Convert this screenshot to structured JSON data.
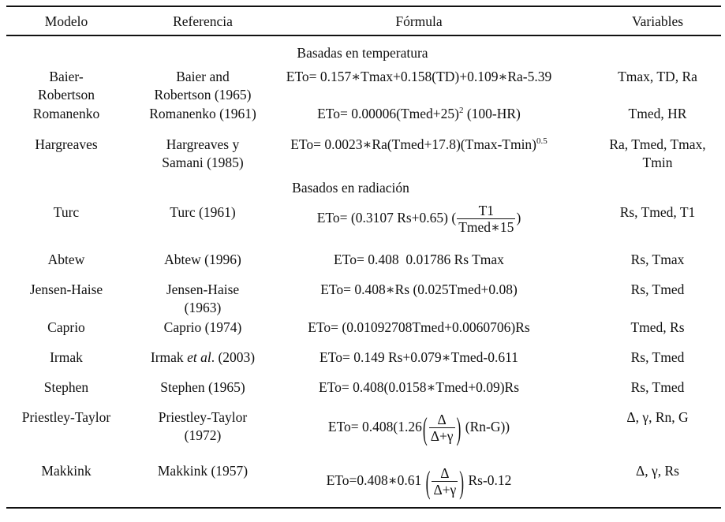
{
  "headers": {
    "modelo": "Modelo",
    "referencia": "Referencia",
    "formula": "Fórmula",
    "variables": "Variables"
  },
  "sections": {
    "temperatura": "Basadas en temperatura",
    "radiacion": "Basados en radiación"
  },
  "rows": [
    {
      "modelo_1": "Baier-",
      "modelo_2": "Robertson",
      "ref_1": "Baier and",
      "ref_2": "Robertson (1965)",
      "formula": "ETo= 0.157∗Tmax+0.158(TD)+0.109∗Ra-5.39",
      "variables": "Tmax, TD, Ra"
    },
    {
      "modelo_1": "Romanenko",
      "ref_1": "Romanenko (1961)",
      "formula_pre": "ETo= 0.00006(Tmed+25)",
      "formula_sup": "2",
      "formula_post": " (100-HR)",
      "variables": "Tmed, HR"
    },
    {
      "modelo_1": "Hargreaves",
      "ref_1": "Hargreaves y",
      "ref_2": "Samani (1985)",
      "formula_pre": "ETo= 0.0023∗Ra(Tmed+17.8)(Tmax-Tmin)",
      "formula_sup": "0.5",
      "variables_1": "Ra, Tmed, Tmax,",
      "variables_2": "Tmin"
    },
    {
      "modelo_1": "Turc",
      "ref_1": "Turc (1961)",
      "formula_pre": "ETo= (0.3107 Rs+0.65) (",
      "formula_num": "T1",
      "formula_den": "Tmed∗15",
      "formula_post": ")",
      "variables": "Rs, Tmed, T1"
    },
    {
      "modelo_1": "Abtew",
      "ref_1": "Abtew (1996)",
      "formula": "ETo= 0.408  0.01786 Rs Tmax",
      "variables": "Rs, Tmax"
    },
    {
      "modelo_1": "Jensen-Haise",
      "ref_1": "Jensen-Haise",
      "ref_2": "(1963)",
      "formula": "ETo= 0.408∗Rs (0.025Tmed+0.08)",
      "variables": "Rs, Tmed"
    },
    {
      "modelo_1": "Caprio",
      "ref_1": "Caprio (1974)",
      "formula": "ETo= (0.01092708Tmed+0.0060706)Rs",
      "variables": "Tmed, Rs"
    },
    {
      "modelo_1": "Irmak",
      "ref_pre": "Irmak ",
      "ref_em": "et al",
      "ref_post": ". (2003)",
      "formula": "ETo= 0.149 Rs+0.079∗Tmed-0.611",
      "variables": "Rs, Tmed"
    },
    {
      "modelo_1": "Stephen",
      "ref_1": "Stephen (1965)",
      "formula": "ETo= 0.408(0.0158∗Tmed+0.09)Rs",
      "variables": "Rs, Tmed"
    },
    {
      "modelo_1": "Priestley-Taylor",
      "ref_1": "Priestley-Taylor",
      "ref_2": "(1972)",
      "formula_pre": "ETo= 0.408(1.26",
      "formula_num": "Δ",
      "formula_den": "Δ+γ",
      "formula_post": "(Rn-G))",
      "variables": "Δ, γ, Rn, G"
    },
    {
      "modelo_1": "Makkink",
      "ref_1": "Makkink (1957)",
      "formula_pre": "ETo=0.408∗0.61",
      "formula_num": "Δ",
      "formula_den": "Δ+γ",
      "formula_post": "Rs-0.12",
      "variables": "Δ, γ, Rs"
    }
  ]
}
